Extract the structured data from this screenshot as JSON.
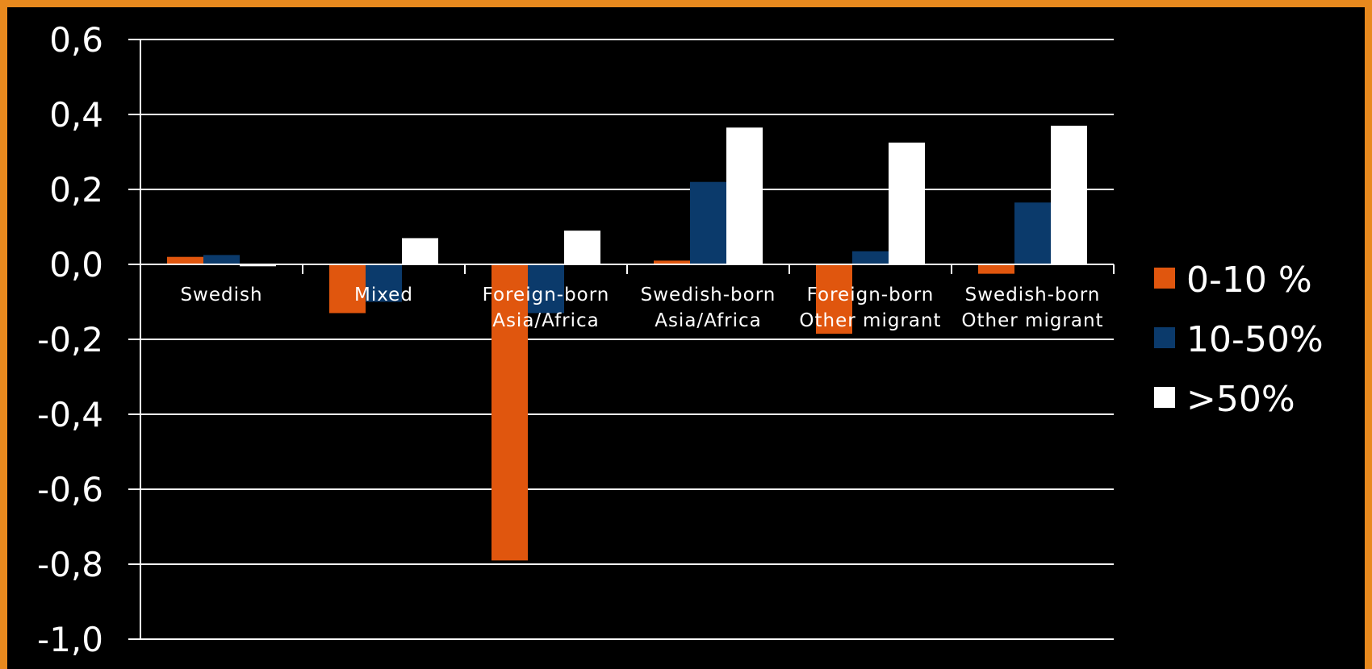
{
  "chart_data": {
    "type": "bar",
    "categories": [
      [
        "Swedish"
      ],
      [
        "Mixed"
      ],
      [
        "Foreign-born",
        "Asia/Africa"
      ],
      [
        "Swedish-born",
        "Asia/Africa"
      ],
      [
        "Foreign-born",
        "Other migrant"
      ],
      [
        "Swedish-born",
        "Other migrant"
      ]
    ],
    "series": [
      {
        "name": "0-10 %",
        "color": "#E0560E",
        "values": [
          0.02,
          -0.13,
          -0.79,
          0.01,
          -0.185,
          -0.025
        ]
      },
      {
        "name": "10-50%",
        "color": "#0B3A6B",
        "values": [
          0.025,
          -0.1,
          -0.13,
          0.22,
          0.035,
          0.165
        ]
      },
      {
        "name": ">50%",
        "color": "#FFFFFF",
        "values": [
          -0.005,
          0.07,
          0.09,
          0.365,
          0.325,
          0.37
        ]
      }
    ],
    "yticks": [
      "0,6",
      "0,4",
      "0,2",
      "0,0",
      "-0,2",
      "-0,4",
      "-0,6",
      "-0,8",
      "-1,0"
    ],
    "ylim": [
      -1.0,
      0.6
    ],
    "grid": true,
    "legend_position": "right",
    "border_color": "#E8891E"
  }
}
